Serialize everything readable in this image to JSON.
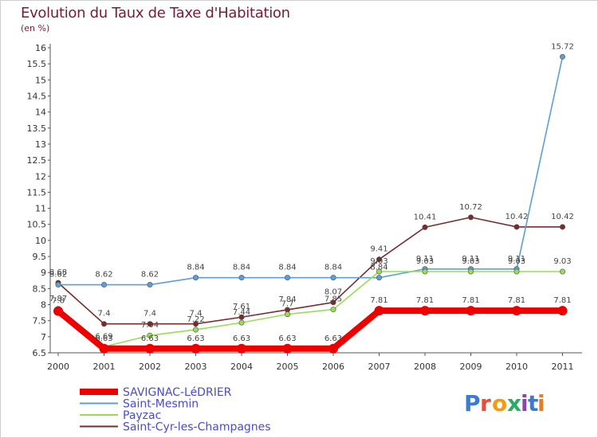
{
  "chart_data": {
    "type": "line",
    "title": "Evolution du Taux de Taxe d'Habitation",
    "ylabel": "(en %)",
    "xlabel": "",
    "categories": [
      "2000",
      "2001",
      "2002",
      "2003",
      "2004",
      "2005",
      "2006",
      "2007",
      "2008",
      "2009",
      "2010",
      "2011"
    ],
    "ylim": [
      6.5,
      16
    ],
    "yticks": [
      "6.5",
      "7",
      "7.5",
      "8",
      "8.5",
      "9",
      "9.5",
      "10",
      "10.5",
      "11",
      "11.5",
      "12",
      "12.5",
      "13",
      "13.5",
      "14",
      "14.5",
      "15",
      "15.5",
      "16"
    ],
    "grid": false,
    "legend_position": "bottom-left",
    "series": [
      {
        "name": "SAVIGNAC-LéDRIER",
        "color": "#ee0000",
        "values": [
          7.8,
          6.63,
          6.63,
          6.63,
          6.63,
          6.63,
          6.63,
          7.81,
          7.81,
          7.81,
          7.81,
          7.81
        ],
        "labels": [
          "7.8",
          "6.63",
          "6.63",
          "6.63",
          "6.63",
          "6.63",
          "6.63",
          "7.81",
          "7.81",
          "7.81",
          "7.81",
          "7.81"
        ]
      },
      {
        "name": "Saint-Mesmin",
        "color": "#5a9fd8",
        "values": [
          8.62,
          8.62,
          8.62,
          8.84,
          8.84,
          8.84,
          8.84,
          8.84,
          9.11,
          9.11,
          9.11,
          15.72
        ],
        "labels": [
          "8.62",
          "8.62",
          "8.62",
          "8.84",
          "8.84",
          "8.84",
          "8.84",
          "8.84",
          "9.11",
          "9.11",
          "9.11",
          "15.72"
        ]
      },
      {
        "name": "Payzac",
        "color": "#99dd55",
        "values": [
          7.87,
          6.69,
          7.04,
          7.22,
          7.44,
          7.7,
          7.85,
          9.03,
          9.03,
          9.03,
          9.03,
          9.03
        ],
        "labels": [
          "7.87",
          "6.69",
          "7.04",
          "7.22",
          "7.44",
          "7.7",
          "7.85",
          "9.03",
          "9.03",
          "9.03",
          "9.03",
          "9.03"
        ]
      },
      {
        "name": "Saint-Cyr-les-Champagnes",
        "color": "#7a2a2a",
        "values": [
          8.68,
          7.4,
          7.4,
          7.4,
          7.61,
          7.84,
          8.07,
          9.41,
          10.41,
          10.72,
          10.42,
          10.42
        ],
        "labels": [
          "8.68",
          "7.4",
          "7.4",
          "7.4",
          "7.61",
          "7.84",
          "8.07",
          "9.41",
          "10.41",
          "10.72",
          "10.42",
          "10.42"
        ]
      }
    ]
  },
  "logo": {
    "text": "Proxiti",
    "letter_colors": [
      "#3a7bd5",
      "#e74c3c",
      "#f39c12",
      "#27ae60",
      "#8e44ad",
      "#3a7bd5",
      "#e67e22"
    ]
  }
}
